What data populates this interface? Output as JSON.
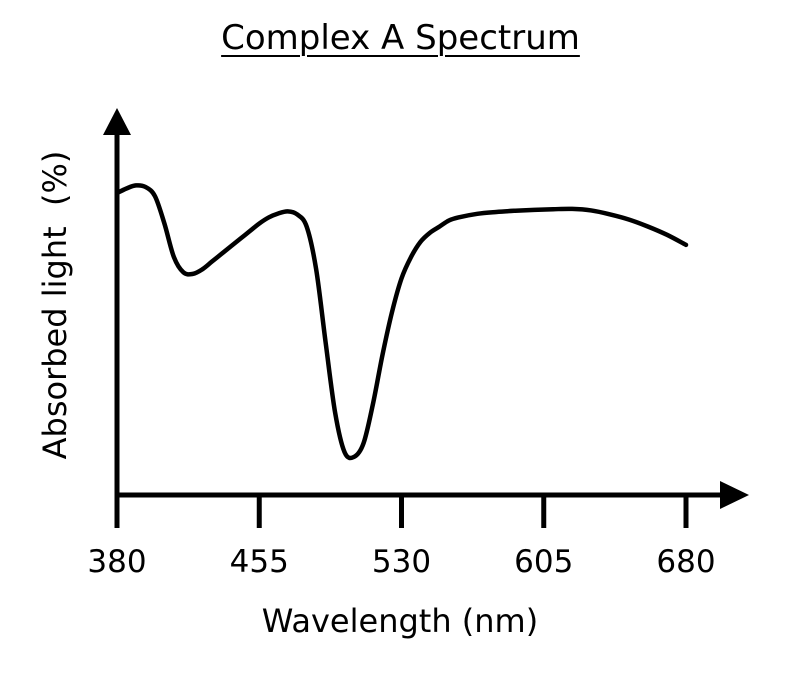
{
  "chart_data": {
    "type": "line",
    "title": "Complex A Spectrum",
    "xlabel": "Wavelength (nm)",
    "ylabel": "Absorbed light  (%)",
    "xlim": [
      380,
      680
    ],
    "ylim": [
      0,
      100
    ],
    "x_ticks": [
      "380",
      "455",
      "530",
      "605",
      "680"
    ],
    "grid": false,
    "series": [
      {
        "x": [
          380,
          385,
          390,
          395,
          400,
          405,
          410,
          415,
          420,
          425,
          430,
          435,
          440,
          445,
          450,
          455,
          460,
          465,
          470,
          475,
          480,
          485,
          490,
          495,
          500,
          505,
          510,
          515,
          520,
          525,
          530,
          535,
          540,
          545,
          550,
          555,
          560,
          570,
          580,
          590,
          600,
          610,
          620,
          630,
          640,
          650,
          660,
          670,
          680
        ],
        "y": [
          99,
          100.5,
          101.5,
          101,
          98,
          89,
          78,
          73,
          72.5,
          74,
          76.5,
          79,
          81.5,
          84,
          86.5,
          89,
          91,
          92.3,
          93,
          92,
          88,
          74,
          50,
          27,
          14,
          12.5,
          17,
          30,
          46,
          60,
          71,
          78,
          83,
          86,
          88,
          90,
          91,
          92.2,
          92.8,
          93.2,
          93.5,
          93.7,
          93.8,
          93.3,
          92,
          90.3,
          88,
          85.3,
          82
        ]
      }
    ]
  }
}
